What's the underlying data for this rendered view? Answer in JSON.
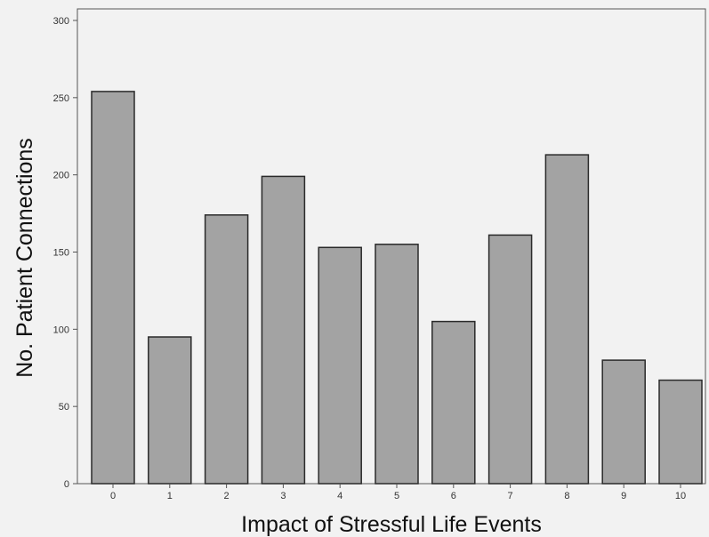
{
  "chart_data": {
    "type": "bar",
    "title": "",
    "xlabel": "Impact of Stressful Life Events",
    "ylabel": "No. Patient Connections",
    "categories": [
      "0",
      "1",
      "2",
      "3",
      "4",
      "5",
      "6",
      "7",
      "8",
      "9",
      "10"
    ],
    "values": [
      254,
      95,
      174,
      199,
      153,
      155,
      105,
      161,
      213,
      80,
      67
    ],
    "ylim": [
      0,
      300
    ],
    "yticks": [
      0,
      50,
      100,
      150,
      200,
      250,
      300
    ],
    "grid": false,
    "legend": "none",
    "colors": {
      "bar_fill": "#a3a3a3",
      "bar_stroke": "#2a2a2a",
      "plot_background": "#f2f2f2",
      "axis": "#555555"
    }
  }
}
